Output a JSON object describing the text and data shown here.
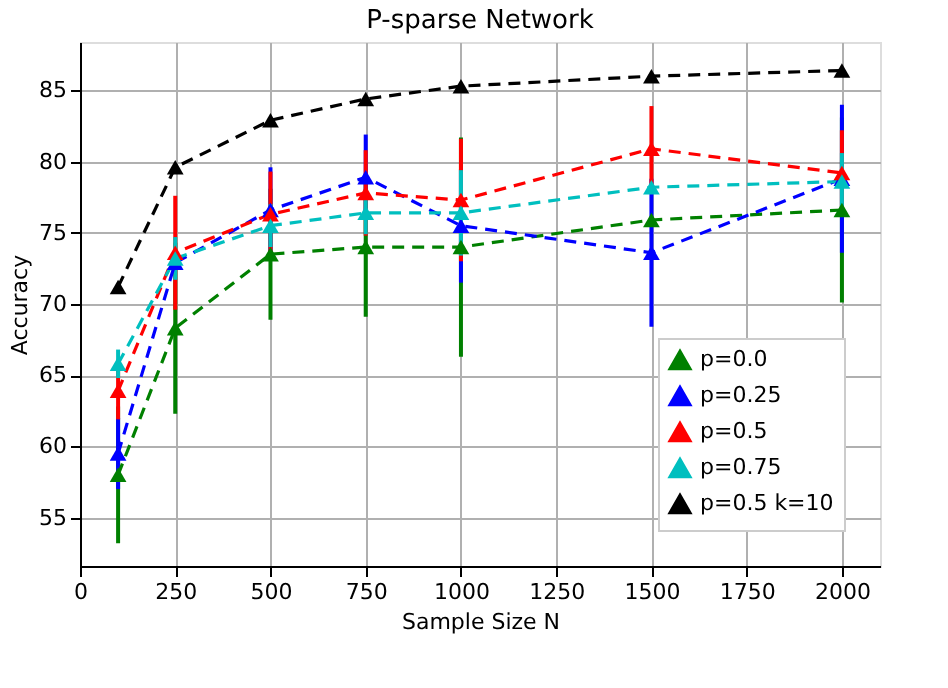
{
  "chart_data": {
    "type": "line",
    "title": "P-sparse Network",
    "xlabel": "Sample Size N",
    "ylabel": "Accuracy",
    "x": [
      100,
      250,
      500,
      750,
      1000,
      1500,
      2000
    ],
    "xlim": [
      0,
      2100
    ],
    "xticks": [
      0,
      250,
      500,
      750,
      1000,
      1250,
      1500,
      1750,
      2000
    ],
    "ylim": [
      51.6,
      88.4
    ],
    "yticks": [
      55,
      60,
      65,
      70,
      75,
      80,
      85
    ],
    "grid": true,
    "legend": "bottom right",
    "marker": "triangle",
    "line_style": "dashed",
    "series": [
      {
        "name": "p=0.0",
        "color": "#008000",
        "values": [
          58.0,
          68.3,
          73.5,
          74.0,
          74.0,
          75.9,
          76.6
        ],
        "errors": [
          4.8,
          6.0,
          4.6,
          4.9,
          7.7,
          null,
          6.5
        ]
      },
      {
        "name": "p=0.25",
        "color": "#0000ff",
        "values": [
          59.5,
          72.9,
          76.6,
          78.9,
          75.5,
          73.6,
          78.8
        ],
        "errors": [
          2.5,
          null,
          3.0,
          3.0,
          4.0,
          5.2,
          5.2
        ]
      },
      {
        "name": "p=0.5",
        "color": "#ff0000",
        "values": [
          63.9,
          73.6,
          76.3,
          77.8,
          77.3,
          80.9,
          79.2
        ],
        "errors": [
          2.0,
          4.0,
          3.0,
          3.0,
          4.3,
          3.0,
          3.0
        ]
      },
      {
        "name": "p=0.75",
        "color": "#00bfbf",
        "values": [
          65.8,
          73.2,
          75.5,
          76.4,
          76.4,
          78.2,
          78.6
        ],
        "errors": [
          1.0,
          1.5,
          1.5,
          1.5,
          3.0,
          null,
          2.0
        ]
      },
      {
        "name": "p=0.5 k=10",
        "color": "#000000",
        "values": [
          71.2,
          79.6,
          82.9,
          84.4,
          85.3,
          86.0,
          86.4
        ]
      }
    ]
  }
}
